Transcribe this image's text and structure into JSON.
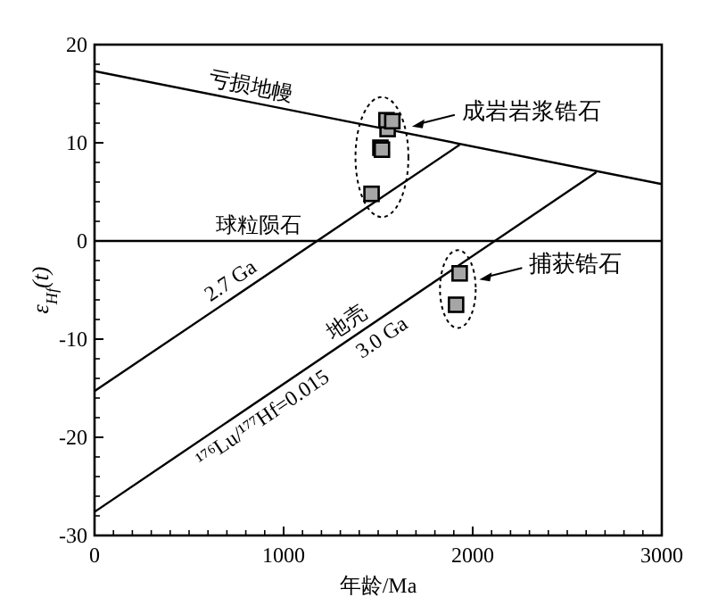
{
  "chart_data": {
    "type": "line",
    "xlabel": "年龄/Ma",
    "ylabel": "ε$_{Hf}$(t)",
    "xlim": [
      0,
      3000
    ],
    "ylim": [
      -30,
      20
    ],
    "xticks": [
      0,
      1000,
      2000,
      3000
    ],
    "yticks": [
      -30,
      -20,
      -10,
      0,
      10,
      20
    ],
    "grid": false,
    "series": [
      {
        "color": "#000000",
        "x": [
          0,
          3000
        ],
        "values": [
          17.3,
          5.8
        ]
      },
      {
        "color": "#000000",
        "x": [
          0,
          3000
        ],
        "values": [
          0,
          0
        ]
      },
      {
        "color": "#000000",
        "x": [
          0,
          1931
        ],
        "values": [
          -15.3,
          9.8
        ]
      },
      {
        "color": "#000000",
        "x": [
          0,
          2654
        ],
        "values": [
          -27.6,
          7.0
        ]
      },
      {
        "type": "scatter",
        "marker": "square",
        "color": "#a6a6a6",
        "x": [
          1465,
          1512,
          1520,
          1550,
          1544,
          1575
        ],
        "values": [
          4.8,
          9.5,
          9.3,
          11.4,
          12.3,
          12.2
        ]
      },
      {
        "type": "scatter",
        "marker": "square",
        "color": "#a6a6a6",
        "x": [
          1931,
          1912
        ],
        "values": [
          -3.3,
          -6.5
        ]
      }
    ],
    "annotations": [
      "亏损地幔",
      "球粒陨石",
      "2.7 Ga",
      "地壳",
      "¹⁷⁶Lu/¹⁷⁷Hf=0.015",
      "3.0 Ga",
      "成岩岩浆锆石",
      "捕获锆石"
    ]
  }
}
